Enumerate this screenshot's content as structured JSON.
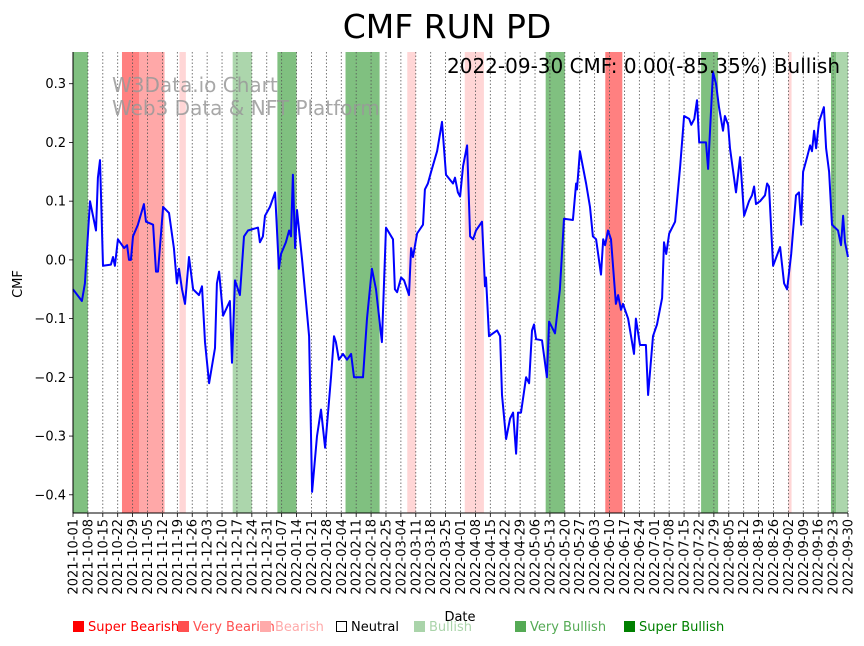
{
  "chart_data": {
    "type": "line",
    "title": "CMF RUN PD",
    "xlabel": "Date",
    "ylabel": "CMF",
    "annotation": "2022-09-30 CMF: 0.00(-85.35%) Bullish",
    "watermark": [
      "W3Data.io Chart",
      "Web3 Data & NFT Platform"
    ],
    "start_date": "2021-10-01",
    "xlim_days": [
      0,
      364
    ],
    "ylim": [
      -0.431,
      0.354
    ],
    "yticks": [
      0.3,
      0.2,
      0.1,
      0.0,
      -0.1,
      -0.2,
      -0.3,
      -0.4
    ],
    "ytick_labels": [
      "0.3",
      "0.2",
      "0.1",
      "0.0",
      "−0.1",
      "−0.2",
      "−0.3",
      "−0.4"
    ],
    "xtick_labels": [
      "2021-10-01",
      "2021-10-08",
      "2021-10-15",
      "2021-10-22",
      "2021-10-29",
      "2021-11-05",
      "2021-11-12",
      "2021-11-19",
      "2021-11-26",
      "2021-12-03",
      "2021-12-10",
      "2021-12-17",
      "2021-12-24",
      "2021-12-31",
      "2022-01-07",
      "2022-01-14",
      "2022-01-21",
      "2022-01-28",
      "2022-02-04",
      "2022-02-11",
      "2022-02-18",
      "2022-02-25",
      "2022-03-04",
      "2022-03-11",
      "2022-03-18",
      "2022-03-25",
      "2022-04-01",
      "2022-04-08",
      "2022-04-15",
      "2022-04-22",
      "2022-04-29",
      "2022-05-06",
      "2022-05-13",
      "2022-05-20",
      "2022-05-27",
      "2022-06-03",
      "2022-06-10",
      "2022-06-17",
      "2022-06-24",
      "2022-07-01",
      "2022-07-08",
      "2022-07-15",
      "2022-07-22",
      "2022-07-29",
      "2022-08-05",
      "2022-08-12",
      "2022-08-19",
      "2022-08-26",
      "2022-09-02",
      "2022-09-09",
      "2022-09-16",
      "2022-09-23",
      "2022-09-30"
    ],
    "grid": "x-dotted",
    "line_color": "#0000ff",
    "series": [
      {
        "name": "CMF",
        "day": [
          0,
          4.2,
          5.6,
          8,
          10.8,
          11.7,
          12.7,
          14.1,
          17.8,
          18.8,
          19.7,
          21.1,
          24,
          25.4,
          26.3,
          27.2,
          28.2,
          30.5,
          33.3,
          34.3,
          37.6,
          39,
          39.9,
          42.3,
          45.1,
          47.4,
          48.8,
          49.8,
          51.2,
          52.6,
          54.5,
          56.4,
          59.2,
          60.6,
          62,
          63.9,
          66.7,
          67.6,
          68.6,
          70.5,
          73.7,
          74.7,
          76.1,
          78.4,
          80.3,
          82.2,
          86.9,
          87.8,
          89.2,
          90.2,
          92.5,
          94.9,
          96.7,
          97.7,
          100,
          101.5,
          102.4,
          103.3,
          104.3,
          105.2,
          107.6,
          109.4,
          110.9,
          112.3,
          114.6,
          116.5,
          118.4,
          121.2,
          122.6,
          123.5,
          124.9,
          126.8,
          128.7,
          130.6,
          132,
          136.2,
          138.1,
          140.4,
          142.3,
          145.1,
          147,
          150.3,
          151.2,
          152.2,
          154.1,
          155.5,
          157.8,
          158.8,
          159.7,
          161.6,
          164.4,
          165.3,
          166.7,
          168.2,
          171,
          173.3,
          175.2,
          178.5,
          179.4,
          180.8,
          181.8,
          183.2,
          185.1,
          186.5,
          187.9,
          189.3,
          192.1,
          193.5,
          194,
          195.4,
          199.2,
          200.6,
          201.5,
          203.4,
          205.3,
          206.7,
          208.1,
          209,
          210.4,
          212.8,
          214.2,
          215.6,
          216.5,
          217.5,
          220.3,
          222.6,
          223.6,
          226.4,
          228.7,
          230.6,
          234.8,
          236.3,
          236.7,
          238.1,
          241,
          242.8,
          244.2,
          245.7,
          248,
          249,
          249.9,
          251.3,
          252.7,
          255,
          256,
          257.4,
          258.3,
          260.7,
          263.5,
          264.4,
          266.3,
          269.1,
          270.1,
          272.4,
          274.3,
          276.7,
          277.6,
          278.6,
          280,
          282.8,
          285.2,
          287,
          289.4,
          290.4,
          291.8,
          293.1,
          294.1,
          297.3,
          298.3,
          300.6,
          302,
          303.4,
          305.3,
          306.2,
          307.7,
          308.6,
          311.4,
          313.3,
          315.2,
          317.5,
          318.9,
          319.9,
          320.8,
          322.7,
          325,
          326,
          326.9,
          328.8,
          332.1,
          334,
          335.4,
          337.3,
          339.6,
          341,
          342,
          342.9,
          344.8,
          346.2,
          347.1,
          348.1,
          349,
          350.4,
          352.7,
          353.7,
          355.1,
          356.5,
          359.3,
          360.7,
          361.7,
          362.6,
          364
        ],
        "cmf": [
          -0.05,
          -0.07,
          -0.04,
          0.1,
          0.05,
          0.14,
          0.17,
          -0.01,
          -0.008,
          0.005,
          -0.01,
          0.035,
          0.02,
          0.025,
          0.0,
          0.0,
          0.04,
          0.06,
          0.095,
          0.065,
          0.06,
          -0.02,
          -0.02,
          0.09,
          0.08,
          0.02,
          -0.04,
          -0.015,
          -0.05,
          -0.075,
          0.005,
          -0.05,
          -0.06,
          -0.045,
          -0.14,
          -0.21,
          -0.15,
          -0.04,
          -0.02,
          -0.095,
          -0.07,
          -0.175,
          -0.035,
          -0.06,
          0.04,
          0.05,
          0.055,
          0.03,
          0.04,
          0.075,
          0.09,
          0.115,
          -0.015,
          0.01,
          0.03,
          0.05,
          0.04,
          0.145,
          0.02,
          0.085,
          0.0,
          -0.07,
          -0.13,
          -0.395,
          -0.3,
          -0.255,
          -0.32,
          -0.2,
          -0.13,
          -0.14,
          -0.17,
          -0.16,
          -0.17,
          -0.16,
          -0.2,
          -0.2,
          -0.1,
          -0.015,
          -0.05,
          -0.14,
          0.055,
          0.035,
          -0.05,
          -0.055,
          -0.03,
          -0.035,
          -0.06,
          0.02,
          0.005,
          0.045,
          0.06,
          0.12,
          0.13,
          0.15,
          0.185,
          0.235,
          0.145,
          0.13,
          0.14,
          0.115,
          0.108,
          0.16,
          0.195,
          0.04,
          0.035,
          0.05,
          0.065,
          -0.045,
          -0.03,
          -0.13,
          -0.12,
          -0.13,
          -0.23,
          -0.305,
          -0.27,
          -0.26,
          -0.33,
          -0.26,
          -0.26,
          -0.2,
          -0.21,
          -0.12,
          -0.11,
          -0.135,
          -0.137,
          -0.2,
          -0.105,
          -0.125,
          -0.05,
          0.07,
          0.068,
          0.13,
          0.12,
          0.185,
          0.13,
          0.09,
          0.04,
          0.035,
          -0.025,
          0.035,
          0.025,
          0.05,
          0.035,
          -0.075,
          -0.06,
          -0.085,
          -0.075,
          -0.1,
          -0.16,
          -0.1,
          -0.145,
          -0.145,
          -0.23,
          -0.13,
          -0.11,
          -0.065,
          0.03,
          0.01,
          0.045,
          0.065,
          0.16,
          0.245,
          0.24,
          0.23,
          0.24,
          0.272,
          0.2,
          0.2,
          0.155,
          0.32,
          0.3,
          0.26,
          0.22,
          0.245,
          0.23,
          0.19,
          0.115,
          0.175,
          0.075,
          0.1,
          0.11,
          0.125,
          0.095,
          0.1,
          0.11,
          0.13,
          0.125,
          -0.01,
          0.022,
          -0.04,
          -0.05,
          0.01,
          0.11,
          0.115,
          0.06,
          0.15,
          0.175,
          0.195,
          0.185,
          0.22,
          0.19,
          0.235,
          0.26,
          0.19,
          0.15,
          0.06,
          0.05,
          0.025,
          0.075,
          0.03,
          0.005
        ]
      }
    ],
    "bands": [
      {
        "start": 0,
        "end": 7,
        "level": "Very Bullish"
      },
      {
        "start": 23,
        "end": 31,
        "level": "Super Bearish"
      },
      {
        "start": 31,
        "end": 43,
        "level": "Very Bearish"
      },
      {
        "start": 50,
        "end": 53,
        "level": "Bearish"
      },
      {
        "start": 75,
        "end": 84,
        "level": "Bullish"
      },
      {
        "start": 96,
        "end": 105,
        "level": "Very Bullish"
      },
      {
        "start": 128,
        "end": 144,
        "level": "Very Bullish"
      },
      {
        "start": 157,
        "end": 161,
        "level": "Bearish"
      },
      {
        "start": 184,
        "end": 193,
        "level": "Bearish"
      },
      {
        "start": 222,
        "end": 231,
        "level": "Very Bullish"
      },
      {
        "start": 250,
        "end": 258,
        "level": "Super Bearish"
      },
      {
        "start": 295,
        "end": 303,
        "level": "Very Bullish"
      },
      {
        "start": 336,
        "end": 337.5,
        "level": "Bearish"
      },
      {
        "start": 356,
        "end": 358.5,
        "level": "Very Bullish"
      },
      {
        "start": 358.5,
        "end": 364,
        "level": "Bullish"
      }
    ],
    "band_colors": {
      "Super Bearish": "#ff8080",
      "Very Bearish": "#ffa8a8",
      "Bearish": "#ffd6d6",
      "Bullish": "#acd6ac",
      "Very Bullish": "#80c080",
      "Super Bullish": "#40a040"
    },
    "legend": [
      {
        "label": "Super Bearish",
        "color": "#ff0000",
        "text_color": "#ff0000"
      },
      {
        "label": "Very Bearish",
        "color": "#ff5050",
        "text_color": "#ff5050"
      },
      {
        "label": "Bearish",
        "color": "#ffaaaa",
        "text_color": "#ffaaaa"
      },
      {
        "label": "Neutral",
        "color": "none",
        "text_color": "#000000"
      },
      {
        "label": "Bullish",
        "color": "#aad4aa",
        "text_color": "#aad4aa"
      },
      {
        "label": "Very Bullish",
        "color": "#55aa55",
        "text_color": "#55aa55"
      },
      {
        "label": "Super Bullish",
        "color": "#008000",
        "text_color": "#008000"
      }
    ]
  }
}
